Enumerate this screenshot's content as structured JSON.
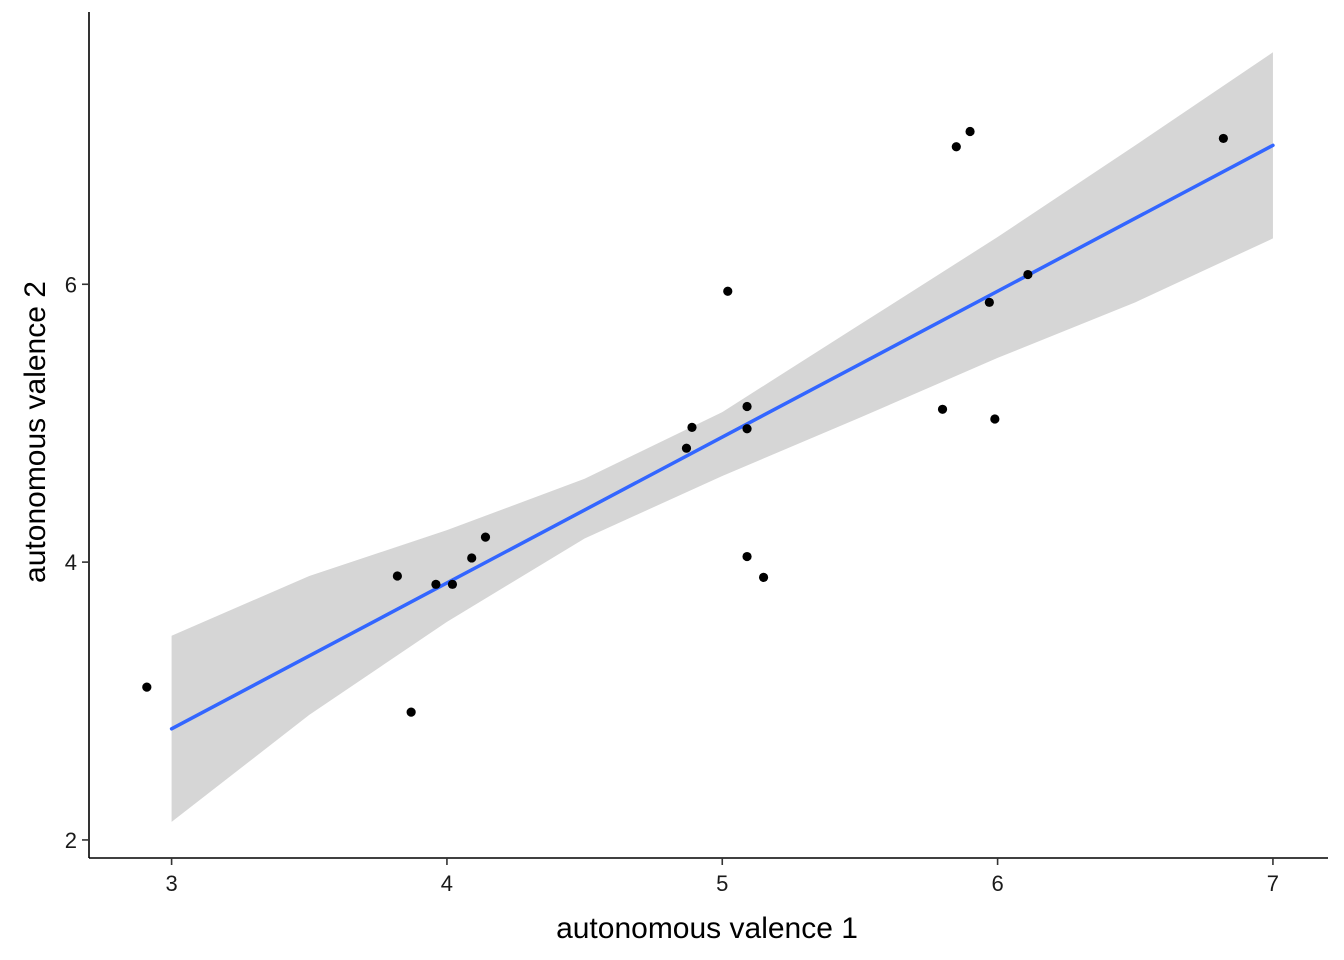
{
  "chart_data": {
    "type": "scatter",
    "title": "",
    "xlabel": "autonomous valence 1",
    "ylabel": "autonomous valence 2",
    "xlim": [
      2.7,
      7.2
    ],
    "ylim": [
      1.87,
      7.96
    ],
    "x_ticks": [
      3,
      4,
      5,
      6,
      7
    ],
    "y_ticks": [
      2,
      4,
      6
    ],
    "x_tick_labels": [
      "3",
      "4",
      "5",
      "6",
      "7"
    ],
    "y_tick_labels": [
      "2",
      "4",
      "6"
    ],
    "grid": false,
    "legend": "none",
    "points": {
      "x": [
        2.91,
        3.82,
        3.87,
        3.96,
        4.02,
        4.09,
        4.14,
        4.87,
        4.89,
        5.02,
        5.09,
        5.09,
        5.09,
        5.15,
        5.8,
        5.85,
        5.9,
        5.97,
        5.99,
        6.11,
        6.82
      ],
      "y": [
        3.1,
        3.9,
        2.92,
        3.84,
        3.84,
        4.03,
        4.18,
        4.82,
        4.97,
        5.95,
        5.12,
        4.96,
        4.04,
        3.89,
        5.1,
        6.99,
        7.1,
        5.87,
        5.03,
        6.07,
        7.05
      ]
    },
    "fit_line": {
      "x": [
        3.0,
        7.0
      ],
      "y": [
        2.8,
        7.0
      ]
    },
    "confidence_band": {
      "x": [
        3.0,
        3.5,
        4.0,
        4.5,
        5.0,
        5.5,
        6.0,
        6.5,
        7.0
      ],
      "lower": [
        2.13,
        2.9,
        3.57,
        4.17,
        4.62,
        5.04,
        5.47,
        5.87,
        6.33
      ],
      "upper": [
        3.47,
        3.9,
        4.23,
        4.6,
        5.08,
        5.71,
        6.34,
        7.0,
        7.67
      ]
    },
    "colors": {
      "points": "#000000",
      "fit_line": "#3366ff",
      "band": "#d6d6d6",
      "axis": "#000000"
    }
  }
}
